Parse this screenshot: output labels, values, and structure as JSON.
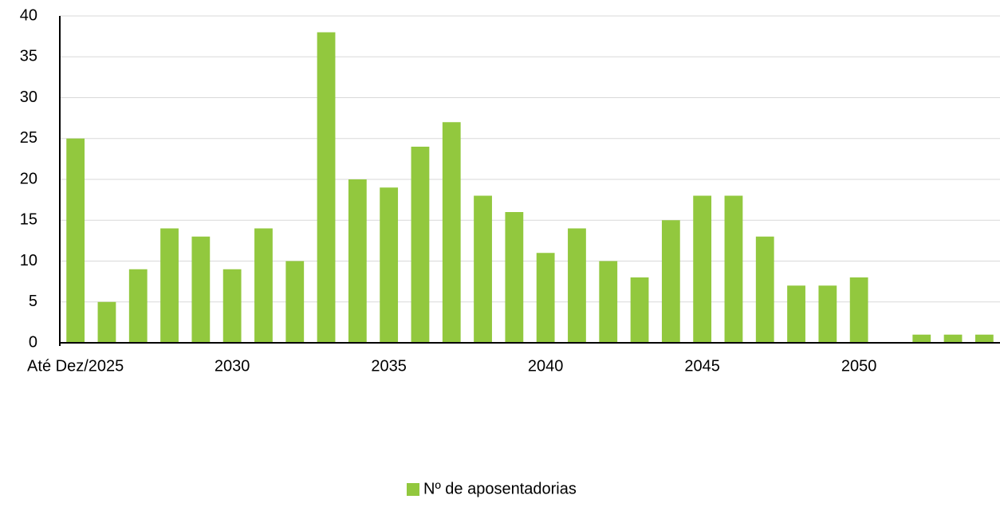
{
  "chart_data": {
    "type": "bar",
    "categories": [
      "Até Dez/2025",
      null,
      null,
      null,
      null,
      "2030",
      null,
      null,
      null,
      null,
      "2035",
      null,
      null,
      null,
      null,
      "2040",
      null,
      null,
      null,
      null,
      "2045",
      null,
      null,
      null,
      null,
      "2050",
      null,
      null,
      null,
      null
    ],
    "series": [
      {
        "name": "Nº de aposentadorias",
        "color": "#92c83e",
        "values": [
          25,
          5,
          9,
          14,
          13,
          9,
          14,
          10,
          38,
          20,
          19,
          24,
          27,
          18,
          16,
          11,
          14,
          10,
          8,
          15,
          18,
          18,
          13,
          7,
          7,
          8,
          0,
          1,
          1,
          1
        ]
      }
    ],
    "ylim": [
      0,
      40
    ],
    "yticks": [
      0,
      5,
      10,
      15,
      20,
      25,
      30,
      35,
      40
    ],
    "grid": true,
    "legend": "bottom"
  }
}
